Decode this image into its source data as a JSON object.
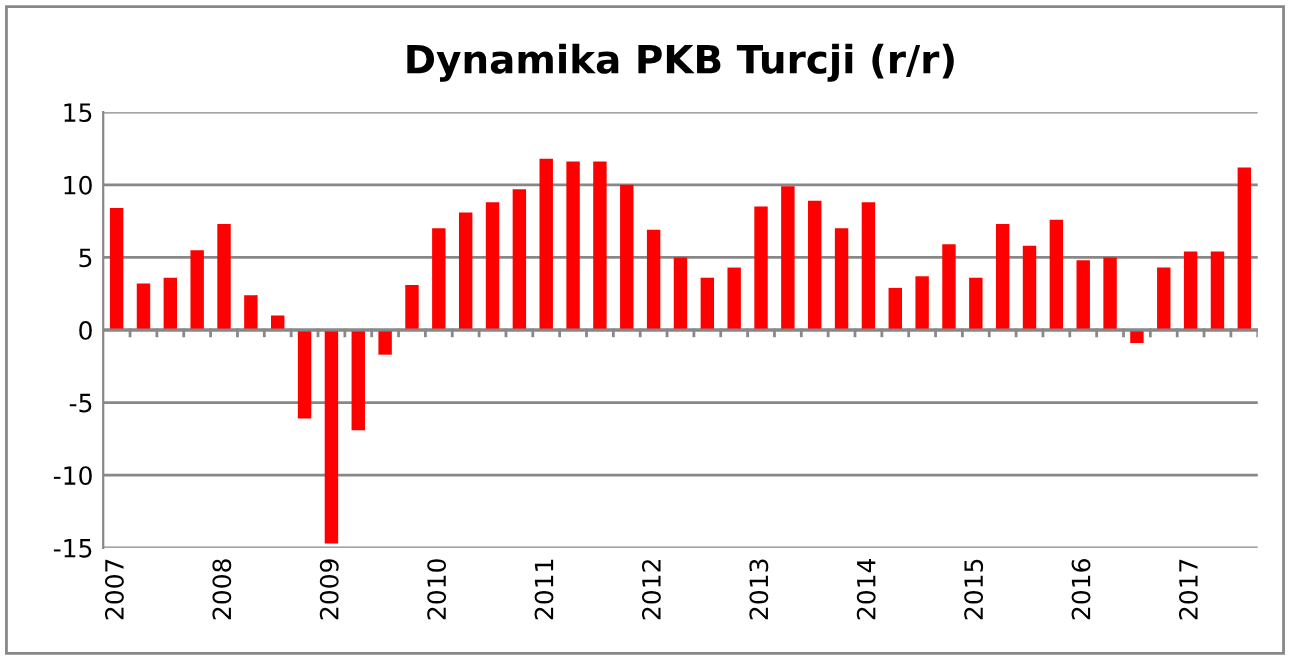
{
  "chart_data": {
    "type": "bar",
    "title": "Dynamika PKB Turcji (r/r)",
    "categories": [
      "2007",
      null,
      null,
      null,
      "2008",
      null,
      null,
      null,
      "2009",
      null,
      null,
      null,
      "2010",
      null,
      null,
      null,
      "2011",
      null,
      null,
      null,
      "2012",
      null,
      null,
      null,
      "2013",
      null,
      null,
      null,
      "2014",
      null,
      null,
      null,
      "2015",
      null,
      null,
      null,
      "2016",
      null,
      null,
      null,
      "2017",
      null,
      null
    ],
    "values": [
      8.4,
      3.2,
      3.6,
      5.5,
      7.3,
      2.4,
      1.0,
      -6.1,
      -14.7,
      -6.9,
      -1.7,
      3.1,
      7.0,
      8.1,
      8.8,
      9.7,
      11.8,
      11.6,
      11.6,
      10.0,
      6.9,
      5.0,
      3.6,
      4.3,
      8.5,
      9.9,
      8.9,
      7.0,
      8.8,
      2.9,
      3.7,
      5.9,
      3.6,
      7.3,
      5.8,
      7.6,
      4.8,
      5.0,
      -0.9,
      4.3,
      5.4,
      5.4,
      11.2
    ],
    "color": "#ff0000",
    "ylim": [
      -15,
      15
    ],
    "yticks": [
      -15,
      -10,
      -5,
      0,
      5,
      10,
      15
    ],
    "grid": "y"
  }
}
